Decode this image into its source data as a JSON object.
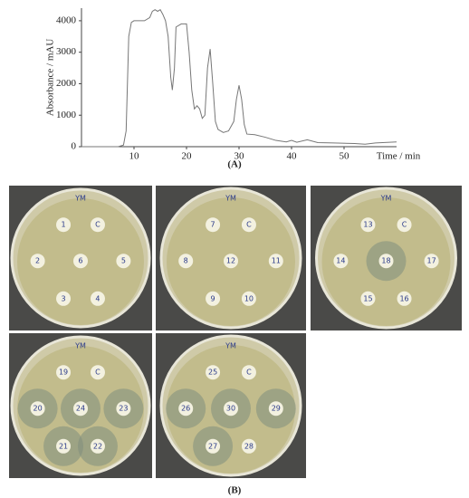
{
  "chart_data": {
    "type": "line",
    "x": [
      0,
      7,
      8,
      8.5,
      9,
      9.5,
      10,
      12,
      13,
      13.5,
      14,
      14.5,
      15,
      15.5,
      16,
      16.5,
      17,
      17.3,
      17.7,
      18,
      19,
      20,
      20.5,
      21,
      21.5,
      22,
      22.5,
      23,
      23.5,
      24,
      24.5,
      25,
      25.5,
      26,
      27,
      28,
      29,
      29.5,
      30,
      30.5,
      31,
      31.5,
      33,
      35,
      37,
      39,
      40,
      41,
      43,
      45,
      48,
      52,
      54,
      56,
      60
    ],
    "values": [
      0,
      0,
      50,
      500,
      3500,
      3950,
      4000,
      4000,
      4100,
      4300,
      4350,
      4300,
      4350,
      4200,
      4000,
      3500,
      2200,
      1800,
      2500,
      3800,
      3900,
      3900,
      3000,
      1800,
      1200,
      1300,
      1200,
      900,
      1000,
      2500,
      3100,
      2000,
      800,
      550,
      450,
      500,
      800,
      1500,
      1950,
      1500,
      700,
      400,
      380,
      300,
      200,
      150,
      200,
      140,
      220,
      130,
      120,
      100,
      80,
      120,
      150
    ],
    "color": "#777777",
    "xlabel": "Time / min",
    "ylabel": "Absorbance / mAU",
    "xlim": [
      0,
      60
    ],
    "ylim": [
      0,
      4400
    ],
    "xticks": [
      10,
      20,
      30,
      40,
      50
    ],
    "yticks": [
      0,
      1000,
      2000,
      3000,
      4000
    ],
    "grid": false
  },
  "panels": {
    "a": "(A)",
    "b": "(B)"
  },
  "photos": [
    {
      "header": "YM",
      "disks": [
        "1",
        "C",
        "2",
        "6",
        "5",
        "3",
        "4"
      ]
    },
    {
      "header": "YM",
      "disks": [
        "7",
        "C",
        "8",
        "12",
        "11",
        "9",
        "10"
      ]
    },
    {
      "header": "YM",
      "disks": [
        "13",
        "C",
        "14",
        "18",
        "17",
        "15",
        "16"
      ]
    },
    {
      "header": "YM",
      "disks": [
        "19",
        "C",
        "20",
        "24",
        "23",
        "21",
        "22"
      ]
    },
    {
      "header": "YM",
      "disks": [
        "25",
        "C",
        "26",
        "30",
        "29",
        "27",
        "28"
      ]
    }
  ]
}
